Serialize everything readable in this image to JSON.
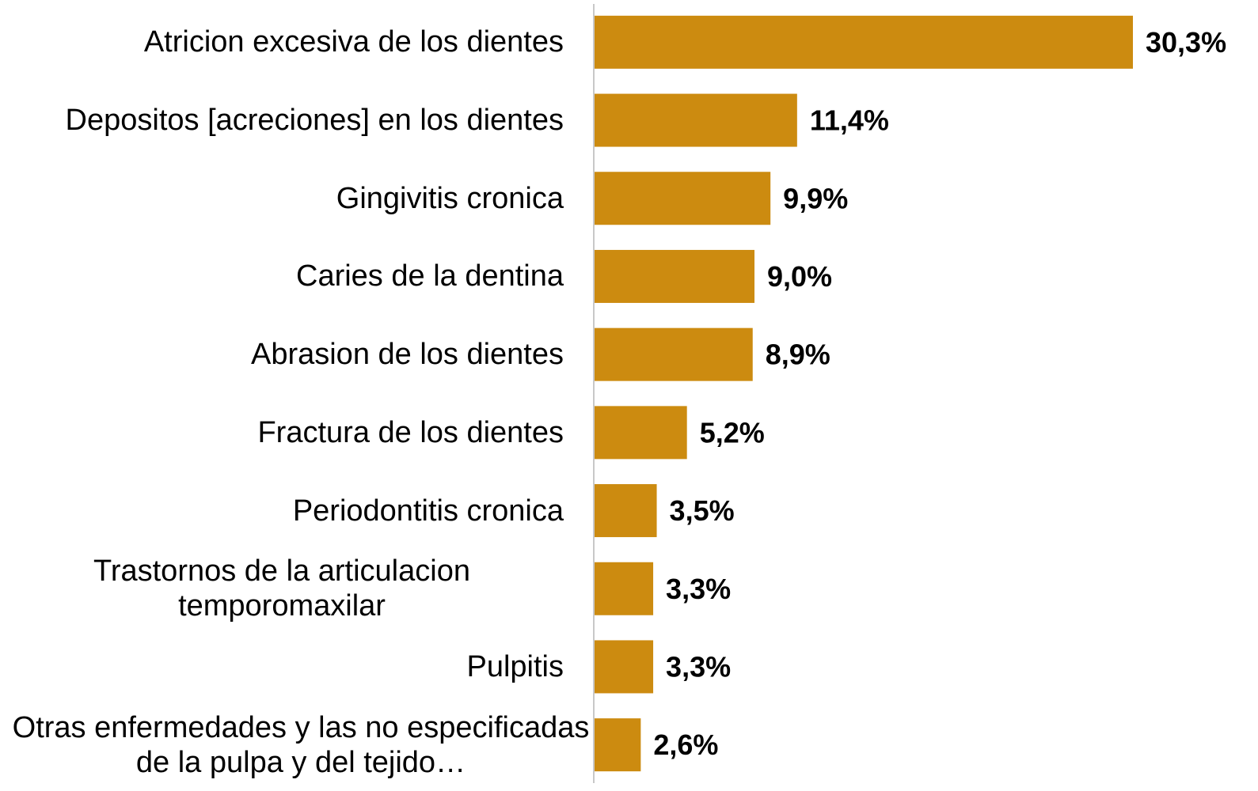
{
  "chart_data": {
    "type": "bar",
    "orientation": "horizontal",
    "categories": [
      "Atricion excesiva de los dientes",
      "Depositos [acreciones] en los dientes",
      "Gingivitis cronica",
      "Caries de la dentina",
      "Abrasion de los dientes",
      "Fractura de los dientes",
      "Periodontitis cronica",
      "Trastornos de la articulacion temporomaxilar",
      "Pulpitis",
      "Otras enfermedades y las no especificadas de la pulpa y del tejido…"
    ],
    "values": [
      30.3,
      11.4,
      9.9,
      9.0,
      8.9,
      5.2,
      3.5,
      3.3,
      3.3,
      2.6
    ],
    "value_labels": [
      "30,3%",
      "11,4%",
      "9,9%",
      "9,0%",
      "8,9%",
      "5,2%",
      "3,5%",
      "3,3%",
      "3,3%",
      "2,6%"
    ],
    "color": "#cc8b10",
    "xlim": [
      0,
      30.3
    ]
  }
}
